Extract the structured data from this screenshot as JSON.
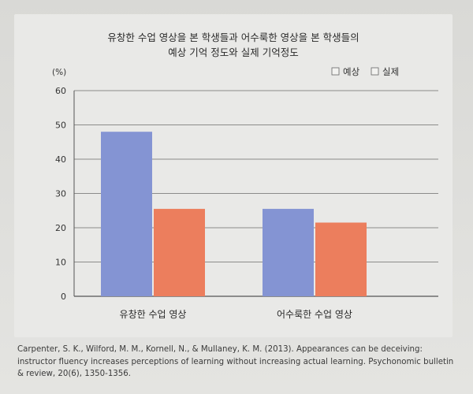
{
  "chart_data": {
    "type": "bar",
    "title": "유창한 수업 영상을 본 학생들과 어수룩한 영상을 본 학생들의\n예상 기억 정도와 실제 기억정도",
    "ylabel": "(%)",
    "xlabel": "",
    "ylim": [
      0,
      60
    ],
    "yticks": [
      0,
      10,
      20,
      30,
      40,
      50,
      60
    ],
    "grid": true,
    "legend_position": "top-right",
    "categories": [
      "유창한 수업 영상",
      "어수룩한 수업 영상"
    ],
    "series": [
      {
        "name": "예상",
        "values": [
          48,
          25.5
        ],
        "color": "#8494d3"
      },
      {
        "name": "실제",
        "values": [
          25.5,
          21.5
        ],
        "color": "#ec7e5d"
      }
    ]
  },
  "citation": "Carpenter, S. K., Wilford, M. M., Kornell, N., & Mullaney, K. M. (2013). Appearances can be deceiving: instructor fluency increases perceptions of learning without increasing actual learning. Psychonomic bulletin & review, 20(6), 1350-1356."
}
